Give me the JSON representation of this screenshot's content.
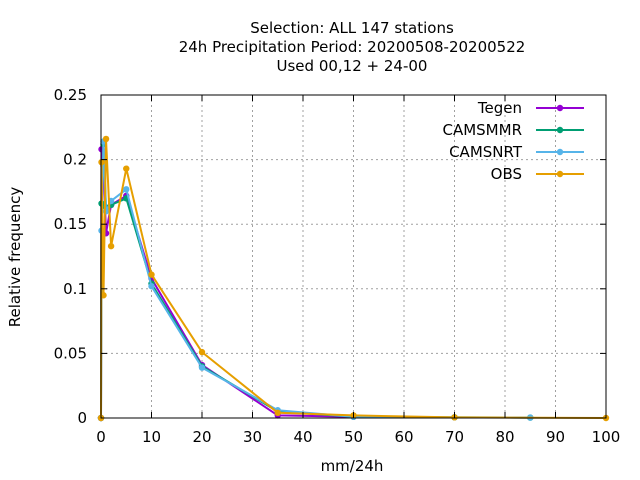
{
  "chart_data": {
    "type": "line",
    "title_lines": [
      "Selection: ALL     147 stations",
      "24h Precipitation  Period: 20200508-20200522",
      "Used  00,12  + 24-00"
    ],
    "xlabel": "mm/24h",
    "ylabel": "Relative frequency",
    "xlim": [
      0,
      100
    ],
    "ylim": [
      0,
      0.25
    ],
    "xticks": [
      0,
      10,
      20,
      30,
      40,
      50,
      60,
      70,
      80,
      90,
      100
    ],
    "yticks": [
      0,
      0.05,
      0.1,
      0.15,
      0.2,
      0.25
    ],
    "ytick_labels": [
      "0",
      "0.05",
      "0.1",
      "0.15",
      "0.2",
      "0.25"
    ],
    "grid": true,
    "legend_position": "top-right",
    "series": [
      {
        "name": "Tegen",
        "color": "#9400d3",
        "x": [
          0,
          0.1,
          0.5,
          1,
          2,
          5,
          10,
          20,
          35,
          50
        ],
        "y": [
          0.0,
          0.208,
          0.195,
          0.143,
          0.165,
          0.172,
          0.108,
          0.041,
          0.002,
          0.001
        ]
      },
      {
        "name": "CAMSMMR",
        "color": "#009e73",
        "x": [
          0,
          0.1,
          0.5,
          1,
          2,
          5,
          10,
          20,
          35,
          50,
          70,
          85
        ],
        "y": [
          0.0,
          0.166,
          0.212,
          0.163,
          0.165,
          0.17,
          0.104,
          0.04,
          0.005,
          0.001,
          0.0005,
          0.0003
        ]
      },
      {
        "name": "CAMSNRT",
        "color": "#56b4e9",
        "x": [
          0,
          0.1,
          0.5,
          1,
          2,
          5,
          10,
          20,
          35,
          50,
          70,
          85
        ],
        "y": [
          0.0,
          0.145,
          0.214,
          0.16,
          0.168,
          0.177,
          0.102,
          0.039,
          0.006,
          0.001,
          0.0005,
          0.0003
        ]
      },
      {
        "name": "OBS",
        "color": "#e69f00",
        "x": [
          0,
          0.1,
          0.5,
          1,
          2,
          5,
          10,
          20,
          35,
          50,
          70,
          100
        ],
        "y": [
          0.0,
          0.198,
          0.095,
          0.216,
          0.133,
          0.193,
          0.111,
          0.051,
          0.004,
          0.002,
          0.0005,
          0.0
        ]
      }
    ]
  }
}
